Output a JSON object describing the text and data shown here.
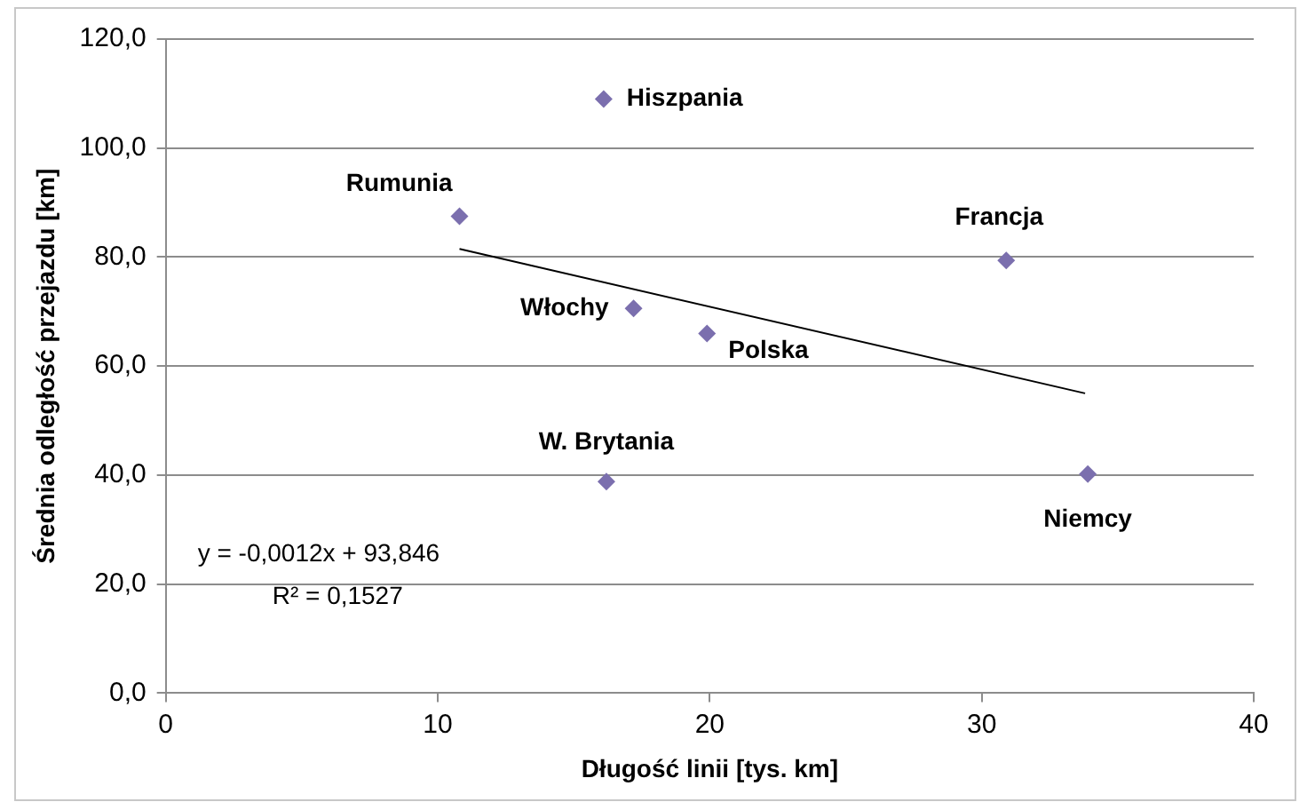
{
  "chart_data": {
    "type": "scatter",
    "xlabel": "Długość linii [tys. km]",
    "ylabel": "Średnia odległość przejazdu [km]",
    "xlim": [
      0,
      40
    ],
    "xticks": [
      0,
      10,
      20,
      30,
      40
    ],
    "ylim": [
      0,
      120
    ],
    "yticks": [
      {
        "value": 0,
        "label": "0,0"
      },
      {
        "value": 20,
        "label": "20,0"
      },
      {
        "value": 40,
        "label": "40,0"
      },
      {
        "value": 60,
        "label": "60,0"
      },
      {
        "value": 80,
        "label": "80,0"
      },
      {
        "value": 100,
        "label": "100,0"
      },
      {
        "value": 120,
        "label": "120,0"
      }
    ],
    "grid": "y",
    "legend": false,
    "marker": "diamond",
    "series": [
      {
        "type": "scatter",
        "color": "#7b6fae",
        "x": [
          16.1,
          10.8,
          30.9,
          17.2,
          19.9,
          16.2,
          33.9
        ],
        "values": [
          109,
          87.5,
          79.4,
          70.6,
          66,
          38.8,
          40.2
        ]
      },
      {
        "type": "line",
        "marker": "none",
        "color": "#000000",
        "x": [
          10.8,
          33.8
        ],
        "values": [
          81.5,
          55
        ]
      }
    ],
    "annotations": [
      {
        "text": "Hiszpania",
        "x": 16.1,
        "y": 109
      },
      {
        "text": "Rumunia",
        "x": 10.8,
        "y": 87.5
      },
      {
        "text": "Francja",
        "x": 30.9,
        "y": 79.4
      },
      {
        "text": "Włochy",
        "x": 17.2,
        "y": 70.6
      },
      {
        "text": "Polska",
        "x": 19.9,
        "y": 66
      },
      {
        "text": "W. Brytania",
        "x": 16.2,
        "y": 38.8
      },
      {
        "text": "Niemcy",
        "x": 33.9,
        "y": 40.2
      },
      "y = -0,0012x + 93,846",
      "R² = 0,1527"
    ]
  }
}
